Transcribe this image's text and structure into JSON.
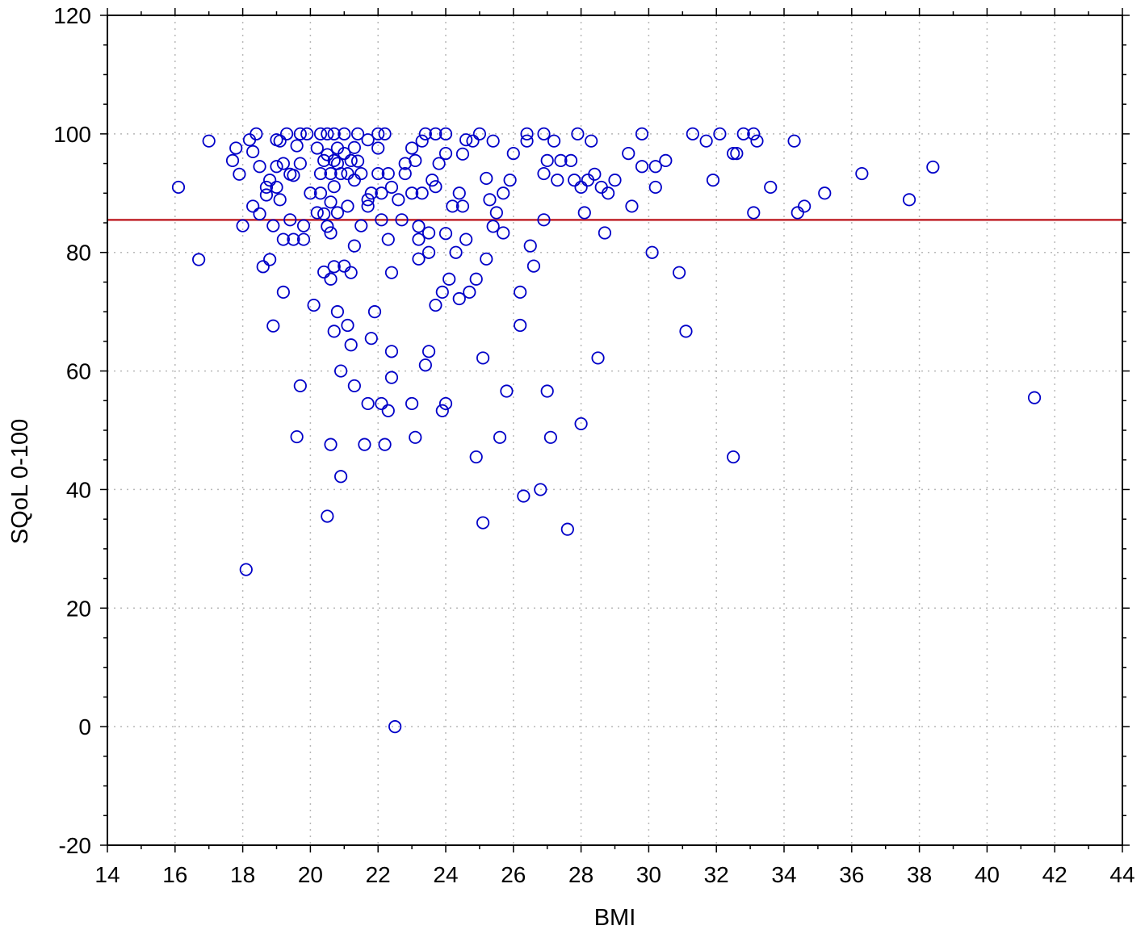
{
  "chart_data": {
    "type": "scatter",
    "xlabel": "BMI",
    "ylabel": "SQoL 0-100",
    "xlim": [
      14,
      44
    ],
    "ylim": [
      -20,
      120
    ],
    "xticks": [
      14,
      16,
      18,
      20,
      22,
      24,
      26,
      28,
      30,
      32,
      34,
      36,
      38,
      40,
      42,
      44
    ],
    "yticks": [
      -20,
      0,
      20,
      40,
      60,
      80,
      100,
      120
    ],
    "grid": true,
    "reference_line": {
      "y": 85.5,
      "color": "#c0242b"
    },
    "marker": {
      "shape": "open-circle",
      "color": "#0000c8"
    },
    "points": [
      [
        16.1,
        91
      ],
      [
        16.7,
        78.8
      ],
      [
        17.0,
        98.8
      ],
      [
        17.7,
        95.5
      ],
      [
        17.8,
        97.6
      ],
      [
        17.9,
        93.2
      ],
      [
        18.0,
        84.5
      ],
      [
        18.1,
        26.5
      ],
      [
        18.2,
        99
      ],
      [
        18.3,
        97
      ],
      [
        18.3,
        87.8
      ],
      [
        18.4,
        100
      ],
      [
        18.5,
        94.5
      ],
      [
        18.5,
        86.5
      ],
      [
        18.6,
        77.6
      ],
      [
        18.7,
        91
      ],
      [
        18.7,
        89.7
      ],
      [
        18.8,
        92.2
      ],
      [
        18.8,
        78.8
      ],
      [
        18.9,
        67.6
      ],
      [
        18.9,
        84.5
      ],
      [
        19.0,
        99
      ],
      [
        19.0,
        94.5
      ],
      [
        19.0,
        91
      ],
      [
        19.1,
        98.8
      ],
      [
        19.1,
        88.9
      ],
      [
        19.2,
        73.3
      ],
      [
        19.2,
        95
      ],
      [
        19.2,
        82.2
      ],
      [
        19.3,
        100
      ],
      [
        19.4,
        85.5
      ],
      [
        19.4,
        93.2
      ],
      [
        19.5,
        93
      ],
      [
        19.5,
        82.2
      ],
      [
        19.6,
        98
      ],
      [
        19.6,
        48.9
      ],
      [
        19.7,
        95
      ],
      [
        19.7,
        57.5
      ],
      [
        19.7,
        100
      ],
      [
        19.8,
        82.2
      ],
      [
        19.8,
        84.5
      ],
      [
        19.9,
        100
      ],
      [
        20.0,
        90
      ],
      [
        20.1,
        71.1
      ],
      [
        20.2,
        97.6
      ],
      [
        20.2,
        86.7
      ],
      [
        20.3,
        100
      ],
      [
        20.3,
        93.3
      ],
      [
        20.3,
        90
      ],
      [
        20.4,
        95.5
      ],
      [
        20.4,
        76.7
      ],
      [
        20.4,
        86.5
      ],
      [
        20.5,
        35.5
      ],
      [
        20.5,
        100
      ],
      [
        20.5,
        96.5
      ],
      [
        20.5,
        84.4
      ],
      [
        20.6,
        75.5
      ],
      [
        20.6,
        47.6
      ],
      [
        20.6,
        83.3
      ],
      [
        20.6,
        93.3
      ],
      [
        20.6,
        88.5
      ],
      [
        20.7,
        100
      ],
      [
        20.7,
        95.5
      ],
      [
        20.7,
        91.1
      ],
      [
        20.7,
        77.6
      ],
      [
        20.7,
        66.7
      ],
      [
        20.8,
        86.7
      ],
      [
        20.8,
        97.6
      ],
      [
        20.8,
        70
      ],
      [
        20.8,
        95
      ],
      [
        20.9,
        60
      ],
      [
        20.9,
        42.2
      ],
      [
        20.9,
        93.3
      ],
      [
        21.0,
        100
      ],
      [
        21.0,
        77.7
      ],
      [
        21.0,
        96.7
      ],
      [
        21.1,
        67.7
      ],
      [
        21.1,
        87.8
      ],
      [
        21.1,
        93.3
      ],
      [
        21.2,
        76.6
      ],
      [
        21.2,
        64.4
      ],
      [
        21.2,
        95.5
      ],
      [
        21.3,
        92.2
      ],
      [
        21.3,
        97.7
      ],
      [
        21.3,
        57.5
      ],
      [
        21.3,
        81.1
      ],
      [
        21.4,
        100
      ],
      [
        21.4,
        95.4
      ],
      [
        21.5,
        84.5
      ],
      [
        21.5,
        93.3
      ],
      [
        21.6,
        47.6
      ],
      [
        21.7,
        54.5
      ],
      [
        21.7,
        99
      ],
      [
        21.7,
        88.9
      ],
      [
        21.7,
        87.8
      ],
      [
        21.8,
        65.5
      ],
      [
        21.8,
        90
      ],
      [
        21.9,
        70
      ],
      [
        22.0,
        100
      ],
      [
        22.0,
        97.6
      ],
      [
        22.0,
        93.3
      ],
      [
        22.1,
        90
      ],
      [
        22.1,
        54.5
      ],
      [
        22.1,
        85.5
      ],
      [
        22.2,
        100
      ],
      [
        22.2,
        47.6
      ],
      [
        22.3,
        53.3
      ],
      [
        22.3,
        82.2
      ],
      [
        22.3,
        93.3
      ],
      [
        22.4,
        63.3
      ],
      [
        22.4,
        58.9
      ],
      [
        22.4,
        91
      ],
      [
        22.4,
        76.6
      ],
      [
        22.5,
        0
      ],
      [
        22.6,
        88.9
      ],
      [
        22.7,
        85.5
      ],
      [
        22.8,
        95
      ],
      [
        22.8,
        93.3
      ],
      [
        23.0,
        54.5
      ],
      [
        23.0,
        97.6
      ],
      [
        23.0,
        90
      ],
      [
        23.1,
        48.8
      ],
      [
        23.1,
        95.5
      ],
      [
        23.2,
        84.4
      ],
      [
        23.2,
        82.2
      ],
      [
        23.2,
        78.9
      ],
      [
        23.3,
        90
      ],
      [
        23.3,
        98.8
      ],
      [
        23.4,
        100
      ],
      [
        23.4,
        61
      ],
      [
        23.5,
        63.3
      ],
      [
        23.5,
        80
      ],
      [
        23.5,
        83.3
      ],
      [
        23.6,
        92.2
      ],
      [
        23.7,
        71.1
      ],
      [
        23.7,
        100
      ],
      [
        23.7,
        91.1
      ],
      [
        23.8,
        95
      ],
      [
        23.9,
        53.3
      ],
      [
        23.9,
        73.3
      ],
      [
        24.0,
        54.5
      ],
      [
        24.0,
        100
      ],
      [
        24.0,
        96.7
      ],
      [
        24.0,
        83.2
      ],
      [
        24.1,
        75.5
      ],
      [
        24.2,
        87.8
      ],
      [
        24.3,
        80
      ],
      [
        24.4,
        90
      ],
      [
        24.4,
        72.2
      ],
      [
        24.5,
        87.8
      ],
      [
        24.5,
        96.6
      ],
      [
        24.6,
        99
      ],
      [
        24.6,
        82.2
      ],
      [
        24.7,
        73.3
      ],
      [
        24.8,
        98.8
      ],
      [
        24.9,
        75.5
      ],
      [
        24.9,
        45.5
      ],
      [
        25.0,
        100
      ],
      [
        25.1,
        34.4
      ],
      [
        25.1,
        62.2
      ],
      [
        25.2,
        92.5
      ],
      [
        25.2,
        78.9
      ],
      [
        25.3,
        88.9
      ],
      [
        25.4,
        98.8
      ],
      [
        25.4,
        84.4
      ],
      [
        25.5,
        86.7
      ],
      [
        25.6,
        48.8
      ],
      [
        25.7,
        83.3
      ],
      [
        25.7,
        90
      ],
      [
        25.8,
        56.6
      ],
      [
        25.9,
        92.2
      ],
      [
        26.0,
        96.7
      ],
      [
        26.2,
        67.7
      ],
      [
        26.2,
        73.3
      ],
      [
        26.3,
        38.9
      ],
      [
        26.4,
        100
      ],
      [
        26.4,
        98.8
      ],
      [
        26.5,
        81.1
      ],
      [
        26.6,
        77.7
      ],
      [
        26.8,
        40
      ],
      [
        26.9,
        100
      ],
      [
        26.9,
        93.3
      ],
      [
        26.9,
        85.5
      ],
      [
        27.0,
        56.6
      ],
      [
        27.0,
        95.5
      ],
      [
        27.1,
        48.8
      ],
      [
        27.2,
        98.8
      ],
      [
        27.3,
        92.2
      ],
      [
        27.4,
        95.5
      ],
      [
        27.6,
        33.3
      ],
      [
        27.7,
        95.5
      ],
      [
        27.8,
        92.2
      ],
      [
        27.9,
        100
      ],
      [
        28.0,
        91
      ],
      [
        28.0,
        51.1
      ],
      [
        28.1,
        86.7
      ],
      [
        28.2,
        92.2
      ],
      [
        28.3,
        98.8
      ],
      [
        28.4,
        93.2
      ],
      [
        28.5,
        62.2
      ],
      [
        28.6,
        91
      ],
      [
        28.7,
        83.3
      ],
      [
        28.8,
        90
      ],
      [
        29.0,
        92.2
      ],
      [
        29.4,
        96.7
      ],
      [
        29.5,
        87.8
      ],
      [
        29.8,
        100
      ],
      [
        29.8,
        94.5
      ],
      [
        30.1,
        80
      ],
      [
        30.2,
        91
      ],
      [
        30.2,
        94.5
      ],
      [
        30.5,
        95.5
      ],
      [
        30.9,
        76.6
      ],
      [
        31.1,
        66.7
      ],
      [
        31.3,
        100
      ],
      [
        31.7,
        98.8
      ],
      [
        31.9,
        92.2
      ],
      [
        32.1,
        100
      ],
      [
        32.5,
        96.7
      ],
      [
        32.5,
        45.5
      ],
      [
        32.6,
        96.7
      ],
      [
        32.8,
        100
      ],
      [
        33.1,
        86.7
      ],
      [
        33.1,
        100
      ],
      [
        33.2,
        98.8
      ],
      [
        33.6,
        91
      ],
      [
        34.3,
        98.8
      ],
      [
        34.4,
        86.7
      ],
      [
        34.6,
        87.8
      ],
      [
        35.2,
        90
      ],
      [
        36.3,
        93.3
      ],
      [
        37.7,
        88.9
      ],
      [
        38.4,
        94.4
      ],
      [
        41.4,
        55.5
      ]
    ]
  }
}
